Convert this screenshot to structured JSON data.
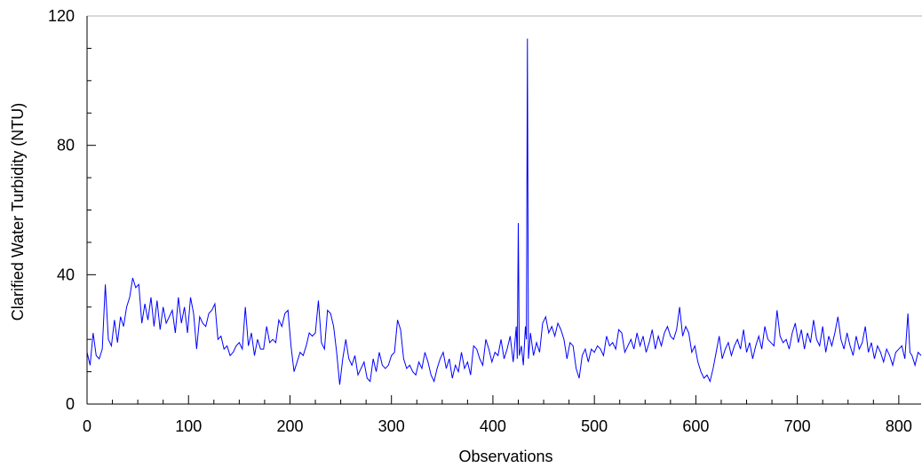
{
  "chart_data": {
    "type": "line",
    "title": "",
    "xlabel": "Observations",
    "ylabel": "Clarified Water Turbidity (NTU)",
    "xlim": [
      0,
      822
    ],
    "ylim": [
      0,
      120
    ],
    "x_ticks": [
      0,
      100,
      200,
      300,
      400,
      500,
      600,
      700,
      800
    ],
    "y_ticks": [
      0,
      40,
      80,
      120
    ],
    "grid": false,
    "legend": "none",
    "series": [
      {
        "color": "#0000ff",
        "x": [
          0,
          3,
          6,
          9,
          12,
          15,
          18,
          21,
          24,
          27,
          30,
          33,
          36,
          39,
          42,
          45,
          48,
          51,
          54,
          57,
          60,
          63,
          66,
          69,
          72,
          75,
          78,
          81,
          84,
          87,
          90,
          93,
          96,
          99,
          102,
          105,
          108,
          111,
          114,
          117,
          120,
          123,
          126,
          129,
          132,
          135,
          138,
          141,
          144,
          147,
          150,
          153,
          156,
          159,
          162,
          165,
          168,
          171,
          174,
          177,
          180,
          183,
          186,
          189,
          192,
          195,
          198,
          201,
          204,
          207,
          210,
          213,
          216,
          219,
          222,
          225,
          228,
          231,
          234,
          237,
          240,
          243,
          246,
          249,
          252,
          255,
          258,
          261,
          264,
          267,
          270,
          273,
          276,
          279,
          282,
          285,
          288,
          291,
          294,
          297,
          300,
          303,
          306,
          309,
          312,
          315,
          318,
          321,
          324,
          327,
          330,
          333,
          336,
          339,
          342,
          345,
          348,
          351,
          354,
          357,
          360,
          363,
          366,
          369,
          372,
          375,
          378,
          381,
          384,
          387,
          390,
          393,
          396,
          399,
          402,
          405,
          408,
          411,
          414,
          417,
          420,
          423,
          424,
          425,
          426,
          428,
          430,
          432,
          433,
          434,
          435,
          437,
          440,
          443,
          446,
          449,
          452,
          455,
          458,
          461,
          464,
          467,
          470,
          473,
          476,
          479,
          482,
          485,
          488,
          491,
          494,
          497,
          500,
          503,
          506,
          509,
          512,
          515,
          518,
          521,
          524,
          527,
          530,
          533,
          536,
          539,
          542,
          545,
          548,
          551,
          554,
          557,
          560,
          563,
          566,
          569,
          572,
          575,
          578,
          581,
          584,
          587,
          590,
          593,
          596,
          599,
          602,
          605,
          608,
          611,
          614,
          617,
          620,
          623,
          626,
          629,
          632,
          635,
          638,
          641,
          644,
          647,
          650,
          653,
          656,
          659,
          662,
          665,
          668,
          671,
          674,
          677,
          680,
          683,
          686,
          689,
          692,
          695,
          698,
          701,
          704,
          707,
          710,
          713,
          716,
          719,
          722,
          725,
          728,
          731,
          734,
          737,
          740,
          743,
          746,
          749,
          752,
          755,
          758,
          761,
          764,
          767,
          770,
          773,
          776,
          779,
          782,
          785,
          788,
          791,
          794,
          797,
          800,
          803,
          806,
          809,
          811,
          813,
          816,
          819,
          822
        ],
        "values": [
          16,
          12,
          22,
          15,
          14,
          17,
          37,
          20,
          18,
          26,
          19,
          27,
          24,
          30,
          33,
          39,
          36,
          37,
          25,
          31,
          26,
          33,
          24,
          32,
          23,
          30,
          25,
          27,
          29,
          22,
          33,
          25,
          30,
          22,
          33,
          28,
          17,
          27,
          25,
          24,
          28,
          29,
          31,
          20,
          21,
          17,
          18,
          15,
          16,
          18,
          19,
          17,
          30,
          18,
          22,
          15,
          20,
          17,
          17,
          24,
          19,
          20,
          19,
          26,
          24,
          28,
          29,
          18,
          10,
          13,
          16,
          15,
          18,
          22,
          21,
          22,
          32,
          19,
          17,
          29,
          28,
          24,
          16,
          6,
          14,
          20,
          14,
          12,
          15,
          9,
          11,
          13,
          8,
          7,
          14,
          10,
          16,
          12,
          11,
          12,
          15,
          16,
          26,
          23,
          14,
          11,
          12,
          10,
          9,
          13,
          11,
          16,
          13,
          9,
          7,
          11,
          14,
          16,
          11,
          14,
          8,
          12,
          10,
          16,
          11,
          13,
          9,
          18,
          17,
          14,
          12,
          20,
          17,
          13,
          16,
          15,
          20,
          14,
          17,
          21,
          13,
          24,
          14,
          56,
          15,
          18,
          12,
          24,
          20,
          113,
          14,
          22,
          15,
          19,
          16,
          25,
          27,
          22,
          24,
          21,
          25,
          23,
          20,
          14,
          19,
          18,
          11,
          8,
          15,
          17,
          13,
          17,
          16,
          18,
          17,
          15,
          21,
          18,
          19,
          17,
          23,
          22,
          16,
          18,
          20,
          17,
          22,
          18,
          21,
          16,
          19,
          23,
          17,
          21,
          18,
          22,
          24,
          21,
          20,
          23,
          30,
          21,
          24,
          22,
          16,
          18,
          13,
          10,
          8,
          9,
          7,
          11,
          16,
          21,
          14,
          17,
          19,
          15,
          18,
          20,
          17,
          23,
          16,
          19,
          14,
          18,
          21,
          17,
          24,
          20,
          19,
          18,
          29,
          21,
          19,
          20,
          17,
          22,
          25,
          19,
          23,
          17,
          22,
          19,
          26,
          20,
          18,
          24,
          16,
          21,
          18,
          22,
          27,
          20,
          17,
          22,
          18,
          15,
          21,
          17,
          19,
          24,
          16,
          19,
          14,
          18,
          16,
          13,
          17,
          15,
          12,
          16,
          17,
          18,
          14,
          28,
          16,
          15,
          12,
          16,
          15
        ]
      }
    ]
  }
}
